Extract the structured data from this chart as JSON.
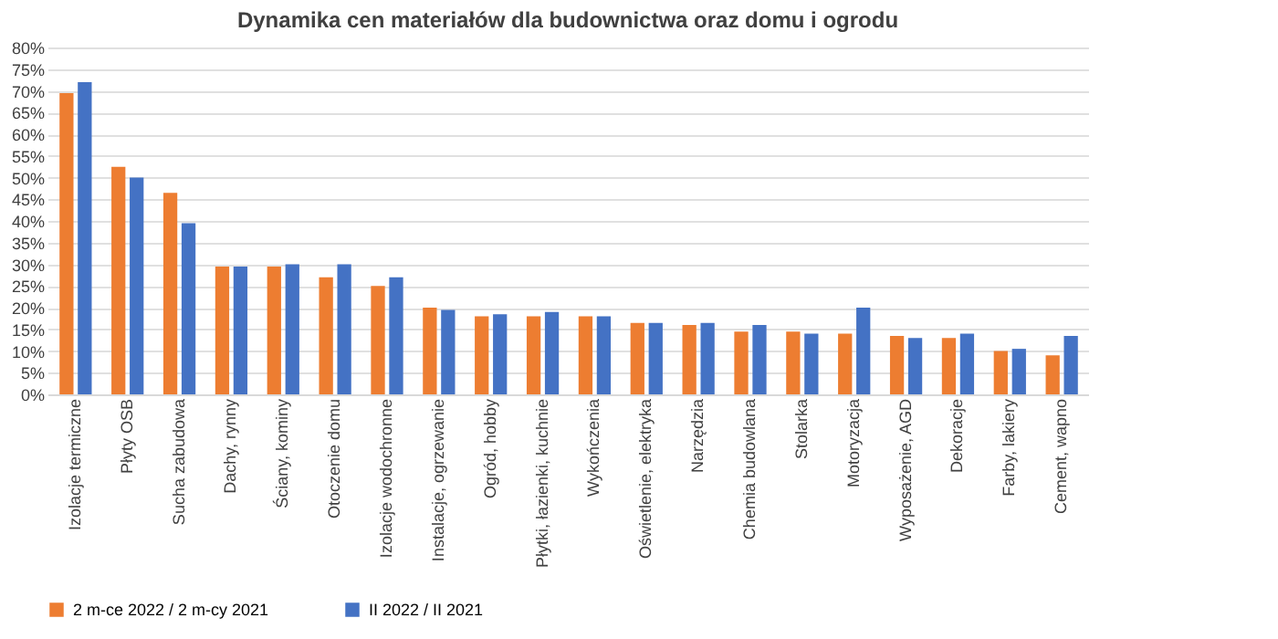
{
  "chart_data": {
    "type": "bar",
    "title": "Dynamika cen materiałów dla budownictwa oraz domu i ogrodu",
    "categories": [
      "Izolacje termiczne",
      "Płyty OSB",
      "Sucha zabudowa",
      "Dachy, rynny",
      "Ściany, kominy",
      "Otoczenie domu",
      "Izolacje wodochronne",
      "Instalacje, ogrzewanie",
      "Ogród, hobby",
      "Płytki, łazienki, kuchnie",
      "Wykończenia",
      "Oświetlenie, elektryka",
      "Narzędzia",
      "Chemia budowlana",
      "Stolarka",
      "Motoryzacja",
      "Wyposażenie, AGD",
      "Dekoracje",
      "Farby, lakiery",
      "Cement, wapno"
    ],
    "series": [
      {
        "name": "2 m-ce 2022 / 2 m-cy 2021",
        "color": "#ed7d31",
        "values": [
          69.5,
          52.5,
          46.5,
          29.5,
          29.5,
          27,
          25,
          20,
          18,
          18,
          18,
          16.5,
          16,
          14.5,
          14.5,
          14,
          13.5,
          13,
          10,
          9
        ]
      },
      {
        "name": "II 2022 / II 2021",
        "color": "#4472c4",
        "values": [
          72,
          50,
          39.5,
          29.5,
          30,
          30,
          27,
          19.5,
          18.5,
          19,
          18,
          16.5,
          16.5,
          16,
          14,
          20,
          13,
          14,
          10.5,
          13.5
        ]
      }
    ],
    "ylim": [
      0,
      80
    ],
    "yticks": [
      {
        "value": 0,
        "label": "0%"
      },
      {
        "value": 5,
        "label": "5%"
      },
      {
        "value": 10,
        "label": "10%"
      },
      {
        "value": 15,
        "label": "15%"
      },
      {
        "value": 20,
        "label": "20%"
      },
      {
        "value": 25,
        "label": "25%"
      },
      {
        "value": 30,
        "label": "30%"
      },
      {
        "value": 35,
        "label": "35%"
      },
      {
        "value": 40,
        "label": "40%"
      },
      {
        "value": 45,
        "label": "45%"
      },
      {
        "value": 50,
        "label": "50%"
      },
      {
        "value": 55,
        "label": "55%"
      },
      {
        "value": 60,
        "label": "60%"
      },
      {
        "value": 65,
        "label": "65%"
      },
      {
        "value": 70,
        "label": "70%"
      },
      {
        "value": 75,
        "label": "75%"
      },
      {
        "value": 80,
        "label": "80%"
      }
    ],
    "grid": "y",
    "legend": "bottom"
  }
}
